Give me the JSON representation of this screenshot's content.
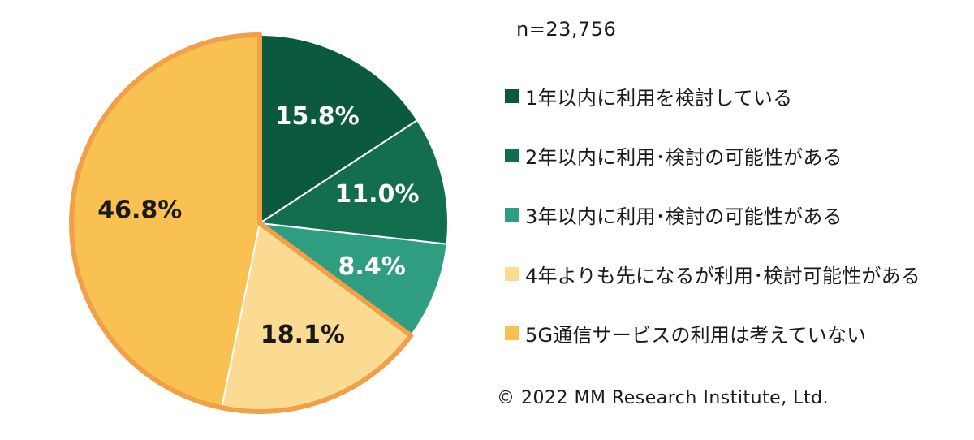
{
  "chart_data": {
    "type": "pie",
    "sample_note": "n=23,756",
    "start_angle_deg": 0,
    "direction": "clockwise",
    "slices": [
      {
        "label": "1年以内に利用を検討している",
        "value": 15.8,
        "display": "15.8%",
        "color": "#0b5a3e",
        "label_color": "#ffffff"
      },
      {
        "label": "2年以内に利用･検討の可能性がある",
        "value": 11.0,
        "display": "11.0%",
        "color": "#126e4c",
        "label_color": "#ffffff"
      },
      {
        "label": "3年以内に利用･検討の可能性がある",
        "value": 8.4,
        "display": "8.4%",
        "color": "#2f9e80",
        "label_color": "#ffffff"
      },
      {
        "label": "4年よりも先になるが利用･検討可能性がある",
        "value": 18.1,
        "display": "18.1%",
        "color": "#fbdb92",
        "label_color": "#1a1a1a"
      },
      {
        "label": "5G通信サービスの利用は考えていない",
        "value": 46.8,
        "display": "46.8%",
        "color": "#f8c152",
        "label_color": "#1a1a1a"
      }
    ],
    "highlight_outline_color": "#f1a049",
    "legend_position": "right"
  },
  "copyright": "© 2022 MM Research Institute, Ltd."
}
